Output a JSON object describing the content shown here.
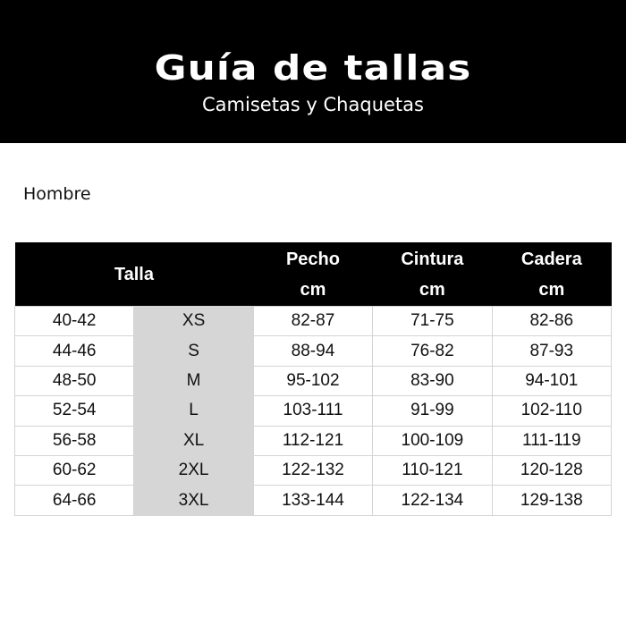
{
  "header": {
    "title": "Guía de tallas",
    "subtitle": "Camisetas y Chaquetas"
  },
  "section": "Hombre",
  "table": {
    "headers": [
      {
        "label": "Talla"
      },
      {
        "label": "Pecho",
        "unit": "cm"
      },
      {
        "label": "Cintura",
        "unit": "cm"
      },
      {
        "label": "Cadera",
        "unit": "cm"
      }
    ],
    "rows": [
      [
        "40-42",
        "XS",
        "82-87",
        "71-75",
        "82-86"
      ],
      [
        "44-46",
        "S",
        "88-94",
        "76-82",
        "87-93"
      ],
      [
        "48-50",
        "M",
        "95-102",
        "83-90",
        "94-101"
      ],
      [
        "52-54",
        "L",
        "103-111",
        "91-99",
        "102-110"
      ],
      [
        "56-58",
        "XL",
        "112-121",
        "100-109",
        "111-119"
      ],
      [
        "60-62",
        "2XL",
        "122-132",
        "110-121",
        "120-128"
      ],
      [
        "64-66",
        "3XL",
        "133-144",
        "122-134",
        "129-138"
      ]
    ]
  },
  "colors": {
    "banner": "#000000",
    "header": "#000000",
    "size_column": "#d6d6d6"
  }
}
